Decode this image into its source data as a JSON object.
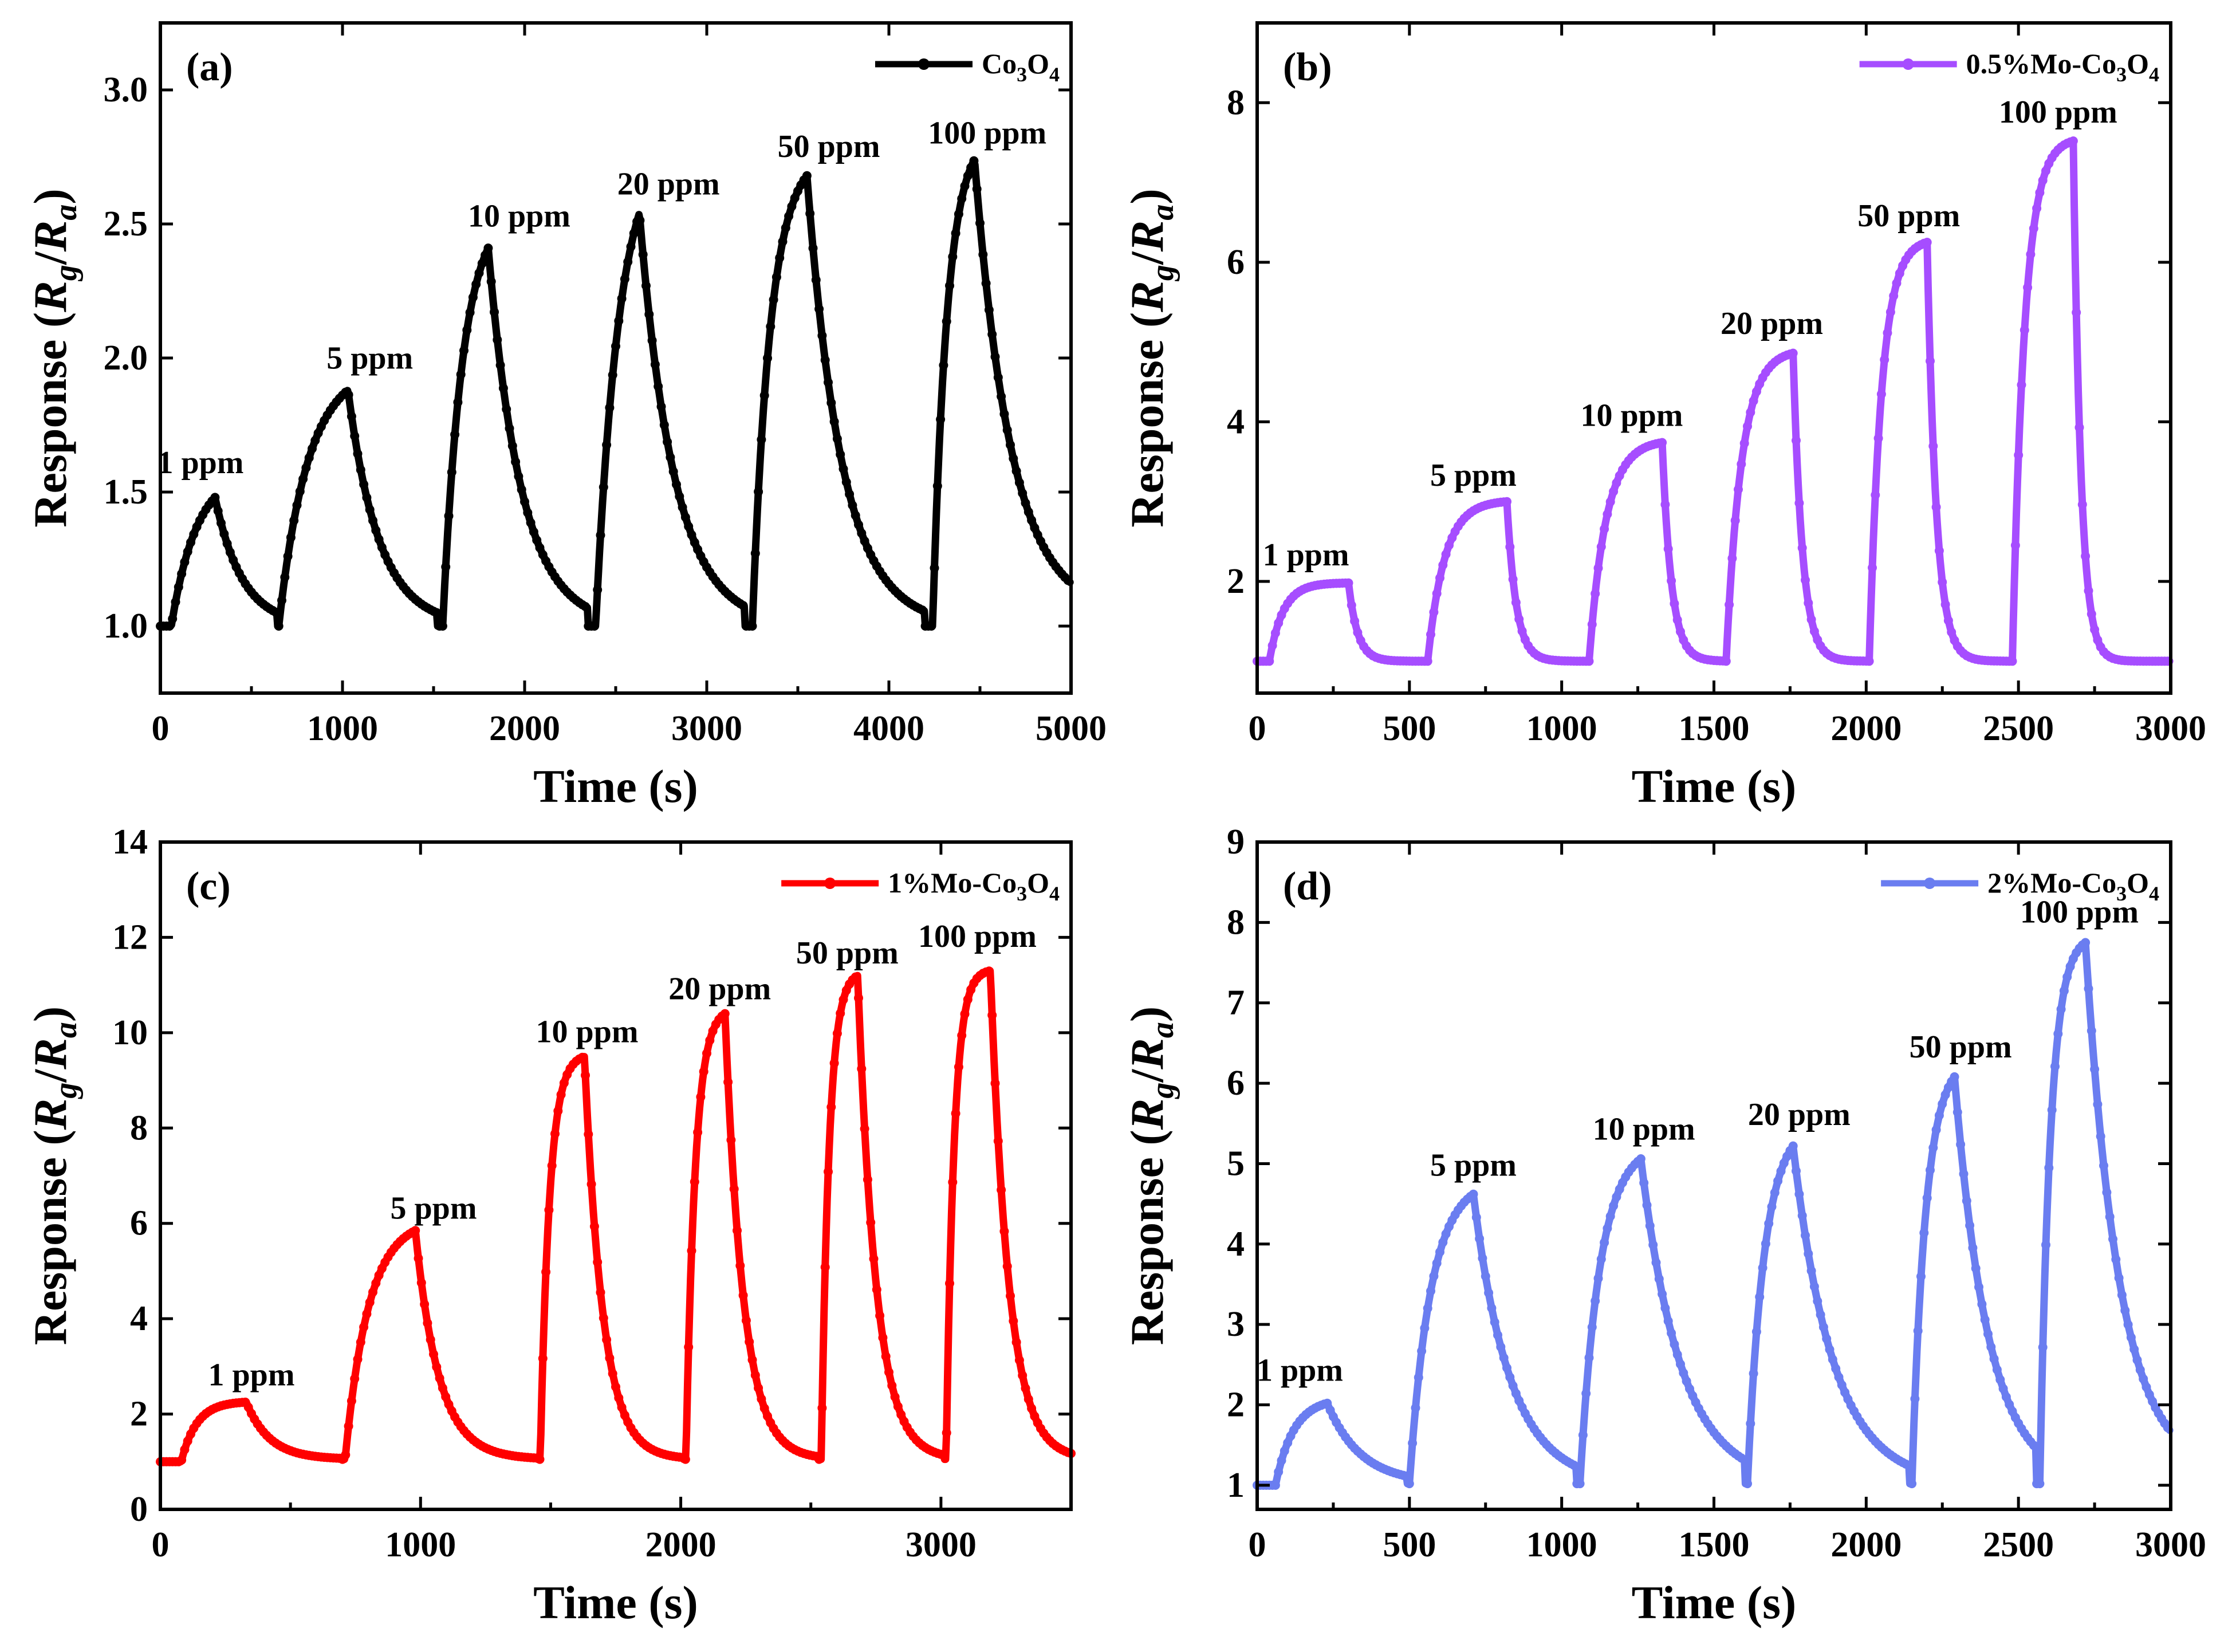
{
  "chart_data": [
    {
      "type": "line",
      "panel_label": "(a)",
      "legend": "Co₃O₄",
      "legend_parts": [
        "Co",
        "3",
        "O",
        "4"
      ],
      "color": "#000000",
      "xlabel": "Time (s)",
      "ylabel_parts": [
        "Response (",
        "R",
        "g",
        "/",
        "R",
        "a",
        ")"
      ],
      "xlim": [
        0,
        5000
      ],
      "ylim": [
        0.75,
        3.25
      ],
      "xticks": [
        0,
        1000,
        2000,
        3000,
        4000,
        5000
      ],
      "yticks": [
        "1.0",
        "1.5",
        "2.0",
        "2.5",
        "3.0"
      ],
      "annotations": [
        {
          "text": "1 ppm",
          "x": 220,
          "y": 1.57
        },
        {
          "text": "5 ppm",
          "x": 1150,
          "y": 1.96
        },
        {
          "text": "10 ppm",
          "x": 1970,
          "y": 2.49
        },
        {
          "text": "20 ppm",
          "x": 2790,
          "y": 2.61
        },
        {
          "text": "50 ppm",
          "x": 3670,
          "y": 2.75
        },
        {
          "text": "100 ppm",
          "x": 4540,
          "y": 2.8
        }
      ],
      "cycles": [
        {
          "on": 0,
          "rise_start": 60,
          "peak_t": 300,
          "peak": 1.48,
          "fall_end": 640,
          "base_end": 1.0,
          "tau_r": 140,
          "tau_f": 150
        },
        {
          "rise_start": 650,
          "peak_t": 1030,
          "peak": 1.88,
          "fall_end": 1520,
          "base_end": 1.0,
          "tau_r": 160,
          "tau_f": 170
        },
        {
          "rise_start": 1550,
          "peak_t": 1800,
          "peak": 2.41,
          "fall_end": 2350,
          "base_end": 1.0,
          "tau_r": 110,
          "tau_f": 180
        },
        {
          "rise_start": 2390,
          "peak_t": 2630,
          "peak": 2.54,
          "fall_end": 3210,
          "base_end": 1.0,
          "tau_r": 130,
          "tau_f": 190
        },
        {
          "rise_start": 3250,
          "peak_t": 3550,
          "peak": 2.68,
          "fall_end": 4200,
          "base_end": 1.0,
          "tau_r": 100,
          "tau_f": 190
        },
        {
          "rise_start": 4240,
          "peak_t": 4470,
          "peak": 2.74,
          "fall_end": 5000,
          "base_end": 1.04,
          "tau_r": 80,
          "tau_f": 200
        }
      ],
      "baseline": 1.0
    },
    {
      "type": "line",
      "panel_label": "(b)",
      "legend": "0.5%Mo-Co₃O₄",
      "legend_parts": [
        "0.5%Mo-Co",
        "3",
        "O",
        "4"
      ],
      "color": "#a64dff",
      "xlabel": "Time (s)",
      "ylabel_parts": [
        "Response (",
        "R",
        "g",
        "/",
        "R",
        "a",
        ")"
      ],
      "xlim": [
        0,
        3000
      ],
      "ylim": [
        0.6,
        9.0
      ],
      "xticks": [
        0,
        500,
        1000,
        1500,
        2000,
        2500,
        3000
      ],
      "yticks": [
        "2",
        "4",
        "6",
        "8"
      ],
      "annotations": [
        {
          "text": "1 ppm",
          "x": 160,
          "y": 2.2
        },
        {
          "text": "5 ppm",
          "x": 710,
          "y": 3.2
        },
        {
          "text": "10 ppm",
          "x": 1230,
          "y": 3.95
        },
        {
          "text": "20 ppm",
          "x": 1690,
          "y": 5.1
        },
        {
          "text": "50 ppm",
          "x": 2140,
          "y": 6.45
        },
        {
          "text": "100 ppm",
          "x": 2630,
          "y": 7.75
        }
      ],
      "cycles": [
        {
          "rise_start": 40,
          "peak_t": 300,
          "peak": 1.98,
          "fall_end": 550,
          "base_end": 1.0,
          "tau_r": 45,
          "tau_f": 30
        },
        {
          "rise_start": 560,
          "peak_t": 820,
          "peak": 3.0,
          "fall_end": 1080,
          "base_end": 1.0,
          "tau_r": 55,
          "tau_f": 30
        },
        {
          "rise_start": 1090,
          "peak_t": 1330,
          "peak": 3.74,
          "fall_end": 1530,
          "base_end": 1.0,
          "tau_r": 55,
          "tau_f": 30
        },
        {
          "rise_start": 1540,
          "peak_t": 1760,
          "peak": 4.86,
          "fall_end": 2000,
          "base_end": 1.0,
          "tau_r": 50,
          "tau_f": 30
        },
        {
          "rise_start": 2010,
          "peak_t": 2200,
          "peak": 6.25,
          "fall_end": 2470,
          "base_end": 1.0,
          "tau_r": 40,
          "tau_f": 30
        },
        {
          "rise_start": 2480,
          "peak_t": 2680,
          "peak": 7.52,
          "fall_end": 3000,
          "base_end": 1.0,
          "tau_r": 40,
          "tau_f": 25
        }
      ],
      "baseline": 1.0
    },
    {
      "type": "line",
      "panel_label": "(c)",
      "legend": "1%Mo-Co₃O₄",
      "legend_parts": [
        "1%Mo-Co",
        "3",
        "O",
        "4"
      ],
      "color": "#ff0000",
      "xlabel": "Time (s)",
      "ylabel_parts": [
        "Response (",
        "R",
        "g",
        "/",
        "R",
        "a",
        ")"
      ],
      "xlim": [
        0,
        3500
      ],
      "ylim": [
        0,
        14
      ],
      "xticks": [
        0,
        1000,
        2000,
        3000
      ],
      "yticks": [
        "0",
        "2",
        "4",
        "6",
        "8",
        "10",
        "12",
        "14"
      ],
      "annotations": [
        {
          "text": "1 ppm",
          "x": 350,
          "y": 2.6
        },
        {
          "text": "5 ppm",
          "x": 1050,
          "y": 6.1
        },
        {
          "text": "10 ppm",
          "x": 1640,
          "y": 9.8
        },
        {
          "text": "20 ppm",
          "x": 2150,
          "y": 10.7
        },
        {
          "text": "50 ppm",
          "x": 2640,
          "y": 11.45
        },
        {
          "text": "100 ppm",
          "x": 3140,
          "y": 11.8
        }
      ],
      "cycles": [
        {
          "rise_start": 80,
          "peak_t": 330,
          "peak": 2.25,
          "fall_end": 700,
          "base_end": 1.05,
          "tau_r": 60,
          "tau_f": 90
        },
        {
          "rise_start": 710,
          "peak_t": 980,
          "peak": 5.85,
          "fall_end": 1450,
          "base_end": 1.05,
          "tau_r": 90,
          "tau_f": 90
        },
        {
          "rise_start": 1460,
          "peak_t": 1630,
          "peak": 9.5,
          "fall_end": 2010,
          "base_end": 1.05,
          "tau_r": 35,
          "tau_f": 70
        },
        {
          "rise_start": 2020,
          "peak_t": 2170,
          "peak": 10.4,
          "fall_end": 2530,
          "base_end": 1.05,
          "tau_r": 35,
          "tau_f": 70
        },
        {
          "rise_start": 2540,
          "peak_t": 2680,
          "peak": 11.2,
          "fall_end": 3010,
          "base_end": 1.05,
          "tau_r": 30,
          "tau_f": 70
        },
        {
          "rise_start": 3020,
          "peak_t": 3190,
          "peak": 11.3,
          "fall_end": 3500,
          "base_end": 1.05,
          "tau_r": 30,
          "tau_f": 70
        }
      ],
      "baseline": 1.0
    },
    {
      "type": "line",
      "panel_label": "(d)",
      "legend": "2%Mo-Co₃O₄",
      "legend_parts": [
        "2%Mo-Co",
        "3",
        "O",
        "4"
      ],
      "color": "#6a7df0",
      "xlabel": "Time (s)",
      "ylabel_parts": [
        "Response (",
        "R",
        "g",
        "/",
        "R",
        "a",
        ")"
      ],
      "xlim": [
        0,
        3000
      ],
      "ylim": [
        0.7,
        9.0
      ],
      "xticks": [
        0,
        500,
        1000,
        1500,
        2000,
        2500,
        3000
      ],
      "yticks": [
        "1",
        "2",
        "3",
        "4",
        "5",
        "6",
        "7",
        "8",
        "9"
      ],
      "annotations": [
        {
          "text": "1 ppm",
          "x": 140,
          "y": 2.3
        },
        {
          "text": "5 ppm",
          "x": 710,
          "y": 4.85
        },
        {
          "text": "10 ppm",
          "x": 1270,
          "y": 5.3
        },
        {
          "text": "20 ppm",
          "x": 1780,
          "y": 5.48
        },
        {
          "text": "50 ppm",
          "x": 2310,
          "y": 6.32
        },
        {
          "text": "100 ppm",
          "x": 2700,
          "y": 8.0
        }
      ],
      "cycles": [
        {
          "rise_start": 60,
          "peak_t": 230,
          "peak": 2.02,
          "fall_end": 490,
          "base_end": 1.02,
          "tau_r": 60,
          "tau_f": 110
        },
        {
          "rise_start": 500,
          "peak_t": 710,
          "peak": 4.62,
          "fall_end": 1050,
          "base_end": 1.02,
          "tau_r": 70,
          "tau_f": 120
        },
        {
          "rise_start": 1060,
          "peak_t": 1260,
          "peak": 5.06,
          "fall_end": 1600,
          "base_end": 1.02,
          "tau_r": 65,
          "tau_f": 130
        },
        {
          "rise_start": 1610,
          "peak_t": 1760,
          "peak": 5.22,
          "fall_end": 2140,
          "base_end": 1.02,
          "tau_r": 55,
          "tau_f": 130
        },
        {
          "rise_start": 2150,
          "peak_t": 2290,
          "peak": 6.08,
          "fall_end": 2560,
          "base_end": 1.02,
          "tau_r": 45,
          "tau_f": 110
        },
        {
          "rise_start": 2570,
          "peak_t": 2720,
          "peak": 7.75,
          "fall_end": 3000,
          "base_end": 1.15,
          "tau_r": 35,
          "tau_f": 110
        }
      ],
      "baseline": 1.0
    }
  ]
}
